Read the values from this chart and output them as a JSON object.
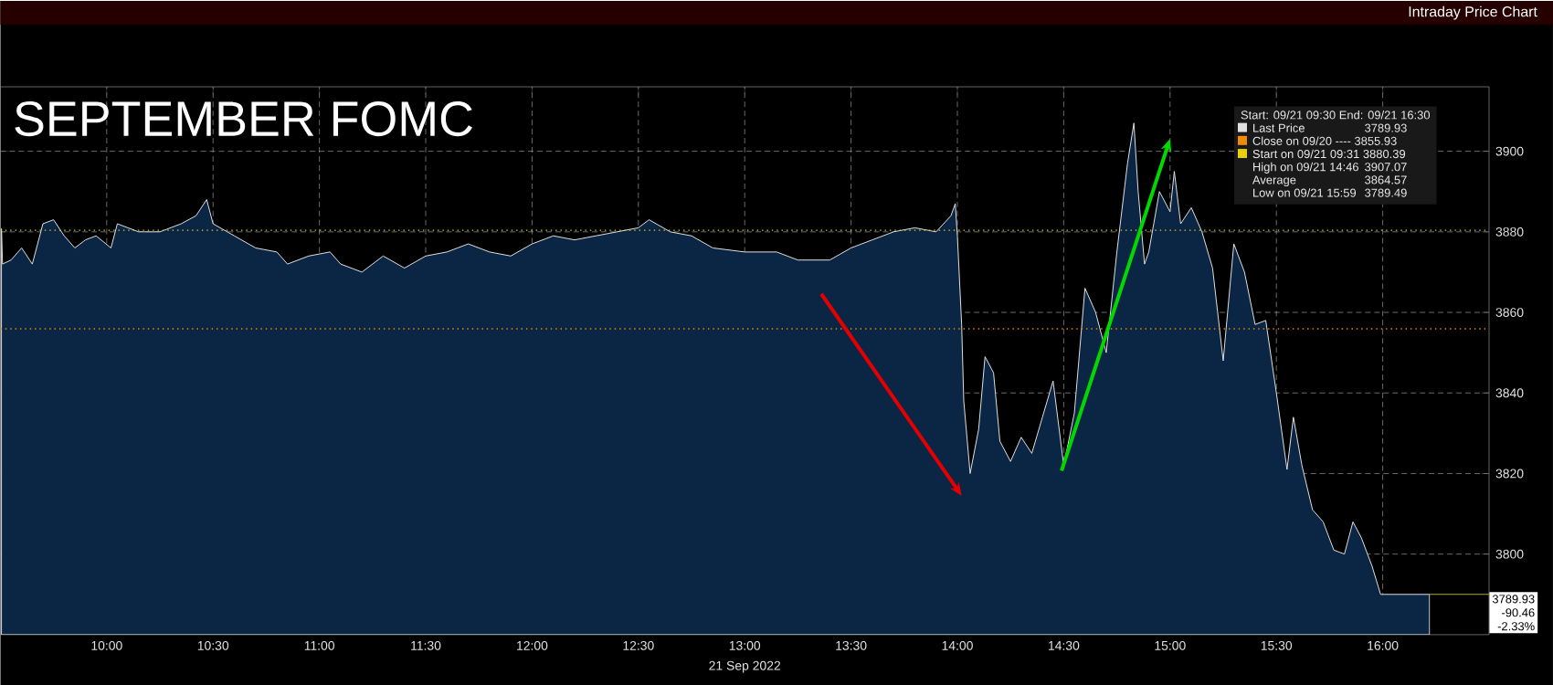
{
  "chart_data": {
    "type": "area",
    "title": "SEPTEMBER FOMC",
    "subtitle": "Intraday Price Chart",
    "xlabel": "21 Sep 2022",
    "xlim": [
      9.5,
      16.5
    ],
    "ylim": [
      3780,
      3916
    ],
    "xticks": [
      {
        "value": 10,
        "label": "10:00"
      },
      {
        "value": 10.5,
        "label": "10:30"
      },
      {
        "value": 11,
        "label": "11:00"
      },
      {
        "value": 11.5,
        "label": "11:30"
      },
      {
        "value": 12,
        "label": "12:00"
      },
      {
        "value": 12.5,
        "label": "12:30"
      },
      {
        "value": 13,
        "label": "13:00"
      },
      {
        "value": 13.5,
        "label": "13:30"
      },
      {
        "value": 14,
        "label": "14:00"
      },
      {
        "value": 14.5,
        "label": "14:30"
      },
      {
        "value": 15,
        "label": "15:00"
      },
      {
        "value": 15.5,
        "label": "15:30"
      },
      {
        "value": 16,
        "label": "16:00"
      }
    ],
    "yticks": [
      3800,
      3820,
      3840,
      3860,
      3880,
      3900
    ],
    "grid": true,
    "legend": "top right",
    "series": [
      {
        "name": "Last Price",
        "color": "#e0e0e0",
        "x": [
          9.505,
          9.51,
          9.55,
          9.6,
          9.65,
          9.7,
          9.75,
          9.8,
          9.85,
          9.9,
          9.95,
          10.02,
          10.05,
          10.15,
          10.25,
          10.35,
          10.42,
          10.47,
          10.5,
          10.6,
          10.7,
          10.8,
          10.85,
          10.95,
          11.05,
          11.1,
          11.2,
          11.3,
          11.4,
          11.5,
          11.6,
          11.7,
          11.8,
          11.9,
          12.0,
          12.1,
          12.2,
          12.3,
          12.5,
          12.55,
          12.65,
          12.75,
          12.85,
          13.0,
          13.15,
          13.25,
          13.4,
          13.5,
          13.6,
          13.7,
          13.8,
          13.9,
          13.97,
          13.99,
          14.0,
          14.02,
          14.03,
          14.06,
          14.1,
          14.13,
          14.17,
          14.2,
          14.25,
          14.3,
          14.35,
          14.4,
          14.45,
          14.5,
          14.55,
          14.6,
          14.65,
          14.7,
          14.75,
          14.8,
          14.83,
          14.85,
          14.88,
          14.9,
          14.95,
          15.0,
          15.02,
          15.05,
          15.1,
          15.15,
          15.2,
          15.25,
          15.3,
          15.35,
          15.4,
          15.45,
          15.5,
          15.55,
          15.58,
          15.62,
          15.67,
          15.72,
          15.77,
          15.82,
          15.86,
          15.9,
          15.95,
          15.99,
          16.22
        ],
        "values": [
          3880.8,
          3872,
          3873,
          3876,
          3872,
          3882,
          3883,
          3879,
          3876,
          3878,
          3879,
          3876,
          3882,
          3880,
          3880,
          3882,
          3884,
          3888,
          3882,
          3879,
          3876,
          3875,
          3872,
          3874,
          3875,
          3872,
          3870,
          3874,
          3871,
          3874,
          3875,
          3877,
          3875,
          3874,
          3877,
          3879,
          3878,
          3879,
          3881,
          3883,
          3880,
          3879,
          3876,
          3875,
          3875,
          3873,
          3873,
          3876,
          3878,
          3880,
          3881,
          3880,
          3884,
          3887,
          3879,
          3857,
          3838,
          3820,
          3831,
          3849,
          3845,
          3828,
          3823,
          3829,
          3825,
          3834,
          3843,
          3822,
          3835,
          3866,
          3860,
          3850,
          3875,
          3897,
          3907,
          3890,
          3872,
          3875,
          3890,
          3885,
          3895,
          3882,
          3886,
          3880,
          3871,
          3848,
          3877,
          3870,
          3857,
          3858,
          3840,
          3821,
          3834,
          3822,
          3811,
          3808,
          3801,
          3800,
          3808,
          3804,
          3797,
          3790,
          3790
        ]
      }
    ],
    "ref_lines": [
      {
        "axis": "y",
        "value": 3855.93,
        "label": "Close on 09/20 ---- 3855.93",
        "color": "#f08c00",
        "line_style": "dotted"
      },
      {
        "axis": "y",
        "value": 3880.39,
        "label": "Start on 09/21 09:31 3880.39",
        "color": "#e8d100",
        "line_style": "dotted"
      }
    ],
    "annotations": [
      "Start: 09/21 09:30 End: 09/21 16:30",
      "3789.93",
      "High on 09/21 14:46",
      "3907.07",
      "Average",
      "3864.57",
      "Low on 09/21 15:59",
      "3789.49",
      {
        "text": "3789.93",
        "x": 16.22,
        "y": 3790
      },
      "-90.46",
      "-2.33%"
    ]
  }
}
